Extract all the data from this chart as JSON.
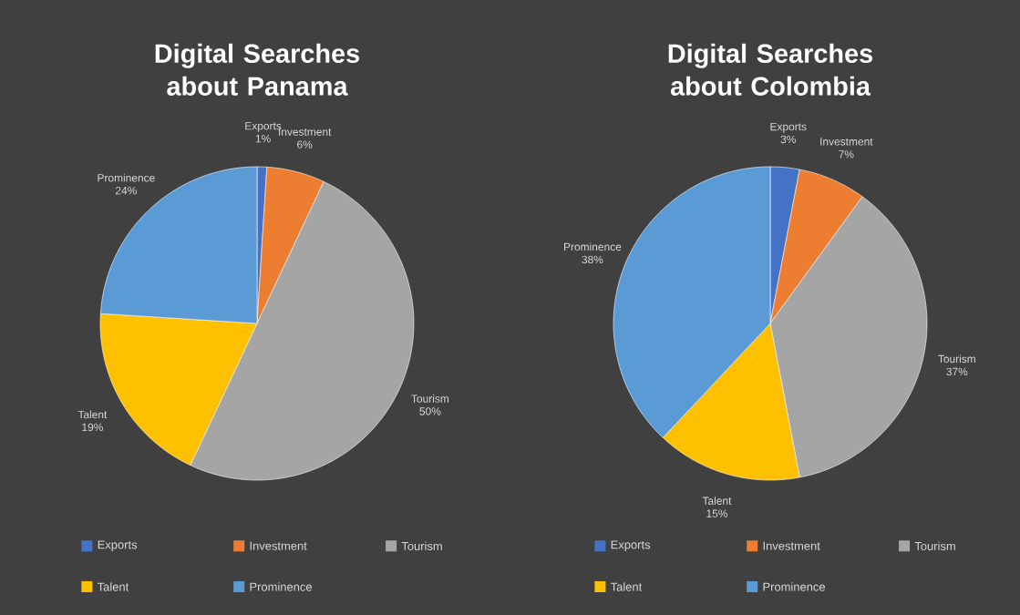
{
  "chart_data": [
    {
      "type": "pie",
      "title": "Digital Searches about Panama",
      "categories": [
        "Exports",
        "Investment",
        "Tourism",
        "Talent",
        "Prominence"
      ],
      "values": [
        1,
        6,
        50,
        19,
        24
      ],
      "value_labels": [
        "1%",
        "6%",
        "50%",
        "19%",
        "24%"
      ],
      "colors": [
        "#4472c4",
        "#ed7d31",
        "#a5a5a5",
        "#ffc000",
        "#5b9bd5"
      ],
      "legend": "bottom"
    },
    {
      "type": "pie",
      "title": "Digital Searches about Colombia",
      "categories": [
        "Exports",
        "Investment",
        "Tourism",
        "Talent",
        "Prominence"
      ],
      "values": [
        3,
        7,
        37,
        15,
        38
      ],
      "value_labels": [
        "3%",
        "7%",
        "37%",
        "15%",
        "38%"
      ],
      "colors": [
        "#4472c4",
        "#ed7d31",
        "#a5a5a5",
        "#ffc000",
        "#5b9bd5"
      ],
      "legend": "bottom"
    }
  ]
}
